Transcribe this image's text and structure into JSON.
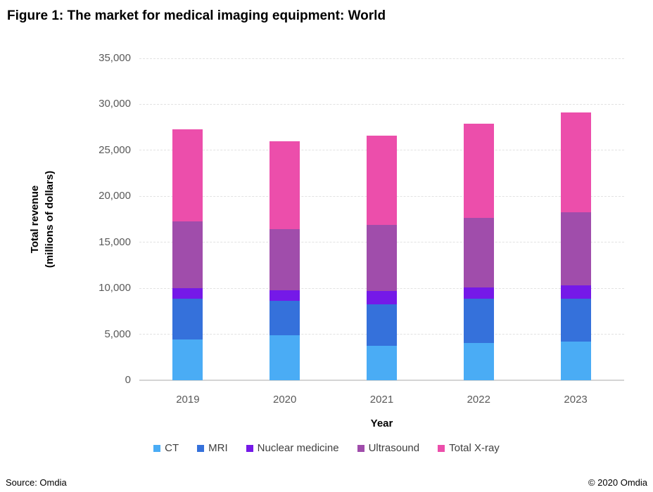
{
  "title": "Figure 1: The market for medical imaging equipment: World",
  "footer": {
    "source": "Source: Omdia",
    "copyright": "© 2020 Omdia"
  },
  "chart_data": {
    "type": "bar",
    "stacked": true,
    "title": "Figure 1: The market for medical imaging equipment: World",
    "categories": [
      "2019",
      "2020",
      "2021",
      "2022",
      "2023"
    ],
    "series": [
      {
        "name": "CT",
        "color": "#4AACF5",
        "values": [
          4400,
          4900,
          3750,
          4050,
          4200
        ]
      },
      {
        "name": "MRI",
        "color": "#3571DB",
        "values": [
          4450,
          3750,
          4500,
          4800,
          4700
        ]
      },
      {
        "name": "Nuclear medicine",
        "color": "#7519E8",
        "values": [
          1200,
          1150,
          1450,
          1250,
          1450
        ]
      },
      {
        "name": "Ultrasound",
        "color": "#A04DAB",
        "values": [
          7250,
          6600,
          7200,
          7550,
          7950
        ]
      },
      {
        "name": "Total X-ray",
        "color": "#EC4EAB",
        "values": [
          10000,
          9600,
          9700,
          10250,
          10800
        ]
      }
    ],
    "stack_totals": [
      27300,
      26000,
      26600,
      27900,
      29100
    ],
    "xlabel": "Year",
    "ylabel_lines": [
      "Total revenue",
      "(millions of dollars)"
    ],
    "ylim": [
      0,
      35000
    ],
    "ytick_step": 5000,
    "ytick_labels": [
      "0",
      "5,000",
      "10,000",
      "15,000",
      "20,000",
      "25,000",
      "30,000",
      "35,000"
    ],
    "grid": true,
    "legend_position": "bottom"
  },
  "colors": {
    "tick_label": "#595959",
    "gridline": "#e2e2e2",
    "axis_line": "#d4d4d4",
    "legend_text": "#3f3f3f"
  }
}
